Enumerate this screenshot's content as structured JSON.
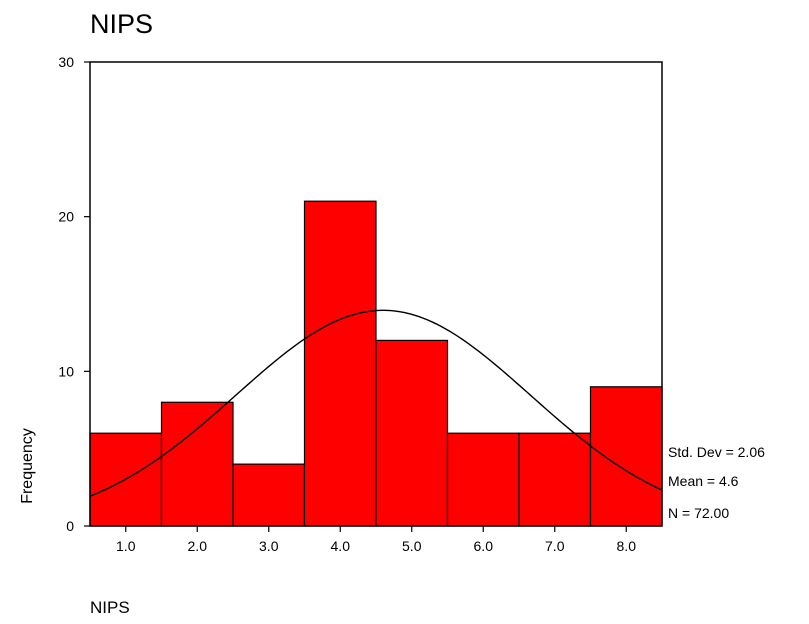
{
  "chart_data": {
    "type": "bar",
    "title": "NIPS",
    "xlabel": "NIPS",
    "ylabel": "Frequency",
    "categories": [
      "1.0",
      "2.0",
      "3.0",
      "4.0",
      "5.0",
      "6.0",
      "7.0",
      "8.0"
    ],
    "values": [
      6,
      8,
      4,
      21,
      12,
      6,
      6,
      9
    ],
    "ylim": [
      0,
      30
    ],
    "xlim": [
      0.5,
      8.5
    ],
    "yticks": [
      "0",
      "10",
      "20",
      "30"
    ],
    "bar_color": "#ff0000",
    "normal_curve": {
      "mean": 4.6,
      "std_dev": 2.06,
      "n": 72
    },
    "stats": [
      "Std. Dev = 2.06",
      "Mean = 4.6",
      "N = 72.00"
    ],
    "grid": false,
    "legend": "none"
  }
}
